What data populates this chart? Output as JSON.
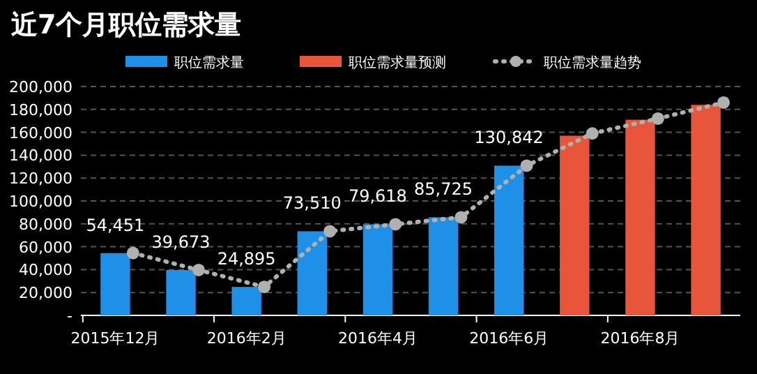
{
  "chart_data": {
    "type": "bar",
    "title": "近7个月职位需求量",
    "categories": [
      "2015年12月",
      null,
      "2016年2月",
      null,
      "2016年4月",
      null,
      "2016年6月",
      null,
      "2016年8月",
      null
    ],
    "series": [
      {
        "name": "职位需求量",
        "color": "#1e90e8",
        "values": [
          54451,
          39673,
          24895,
          73510,
          79618,
          85725,
          130842,
          null,
          null,
          null
        ],
        "value_labels": [
          "54,451",
          "39,673",
          "24,895",
          "73,510",
          "79,618",
          "85,725",
          "130,842",
          null,
          null,
          null
        ]
      },
      {
        "name": "职位需求量预测",
        "color": "#e8553a",
        "values": [
          null,
          null,
          null,
          null,
          null,
          null,
          null,
          157000,
          171000,
          184000
        ]
      },
      {
        "name": "职位需求量趋势",
        "type": "line",
        "color": "#b0b0b0",
        "marker": "circle",
        "line_style": "dotted",
        "values": [
          54451,
          39673,
          24895,
          73510,
          79618,
          85725,
          130842,
          159000,
          172000,
          186000
        ]
      }
    ],
    "ylim": [
      0,
      200000
    ],
    "yticks": [
      {
        "value": 0,
        "label": "-"
      },
      {
        "value": 20000,
        "label": "20,000"
      },
      {
        "value": 40000,
        "label": "40,000"
      },
      {
        "value": 60000,
        "label": "60,000"
      },
      {
        "value": 80000,
        "label": "80,000"
      },
      {
        "value": 100000,
        "label": "100,000"
      },
      {
        "value": 120000,
        "label": "120,000"
      },
      {
        "value": 140000,
        "label": "140,000"
      },
      {
        "value": 160000,
        "label": "160,000"
      },
      {
        "value": 180000,
        "label": "180,000"
      },
      {
        "value": 200000,
        "label": "200,000"
      }
    ],
    "grid": "y",
    "legend": "top"
  }
}
